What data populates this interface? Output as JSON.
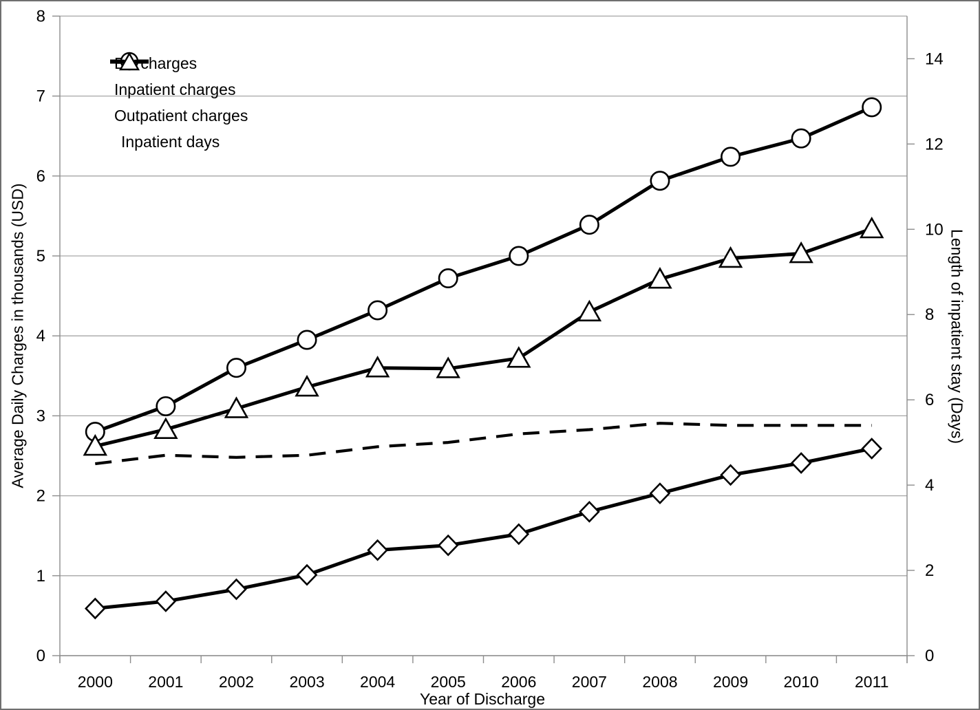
{
  "colors": {
    "series_line": "#000000",
    "marker_fill": "#ffffff",
    "gridline": "#a6a6a6",
    "axis_line": "#8c8c8c",
    "text": "#000000",
    "background": "#ffffff",
    "frame_border": "#6f6f6f"
  },
  "chart_data": {
    "type": "line",
    "title": "",
    "xlabel": "Year of Discharge",
    "ylabel_left": "Average Daily Charges in thousands (USD)",
    "ylabel_right": "Length of inpatient stay (Days)",
    "x_categories": [
      "2000",
      "2001",
      "2002",
      "2003",
      "2004",
      "2005",
      "2006",
      "2007",
      "2008",
      "2009",
      "2010",
      "2011"
    ],
    "y_left_axis": {
      "min": 0,
      "max": 8,
      "tick_labels": [
        "0",
        "1",
        "2",
        "3",
        "4",
        "5",
        "6",
        "7",
        "8"
      ]
    },
    "y_right_axis": {
      "min": 0,
      "max": 15,
      "tick_values": [
        0,
        2,
        4,
        6,
        8,
        10,
        12,
        14
      ],
      "tick_labels": [
        "0",
        "2",
        "4",
        "6",
        "8",
        "10",
        "12",
        "14"
      ]
    },
    "grid": "horizontal",
    "legend_position": "inside-top-left",
    "series": [
      {
        "name": "ED charges",
        "axis": "left",
        "marker": "diamond",
        "line_style": "solid",
        "values": [
          0.59,
          0.68,
          0.83,
          1.01,
          1.32,
          1.38,
          1.52,
          1.8,
          2.03,
          2.26,
          2.41,
          2.59
        ]
      },
      {
        "name": "Inpatient charges",
        "axis": "left",
        "marker": "circle",
        "line_style": "solid",
        "values": [
          2.8,
          3.12,
          3.6,
          3.95,
          4.32,
          4.72,
          5.0,
          5.39,
          5.94,
          6.24,
          6.47,
          6.86
        ]
      },
      {
        "name": "Outpatient charges",
        "axis": "left",
        "marker": "triangle",
        "line_style": "solid",
        "values": [
          2.62,
          2.83,
          3.09,
          3.36,
          3.6,
          3.59,
          3.72,
          4.3,
          4.71,
          4.97,
          5.03,
          5.34
        ]
      },
      {
        "name": "Inpatient days",
        "axis": "right",
        "marker": "none",
        "line_style": "dashed",
        "values": [
          4.5,
          4.7,
          4.65,
          4.7,
          4.9,
          5.0,
          5.2,
          5.3,
          5.45,
          5.4,
          5.4,
          5.4
        ]
      }
    ]
  }
}
